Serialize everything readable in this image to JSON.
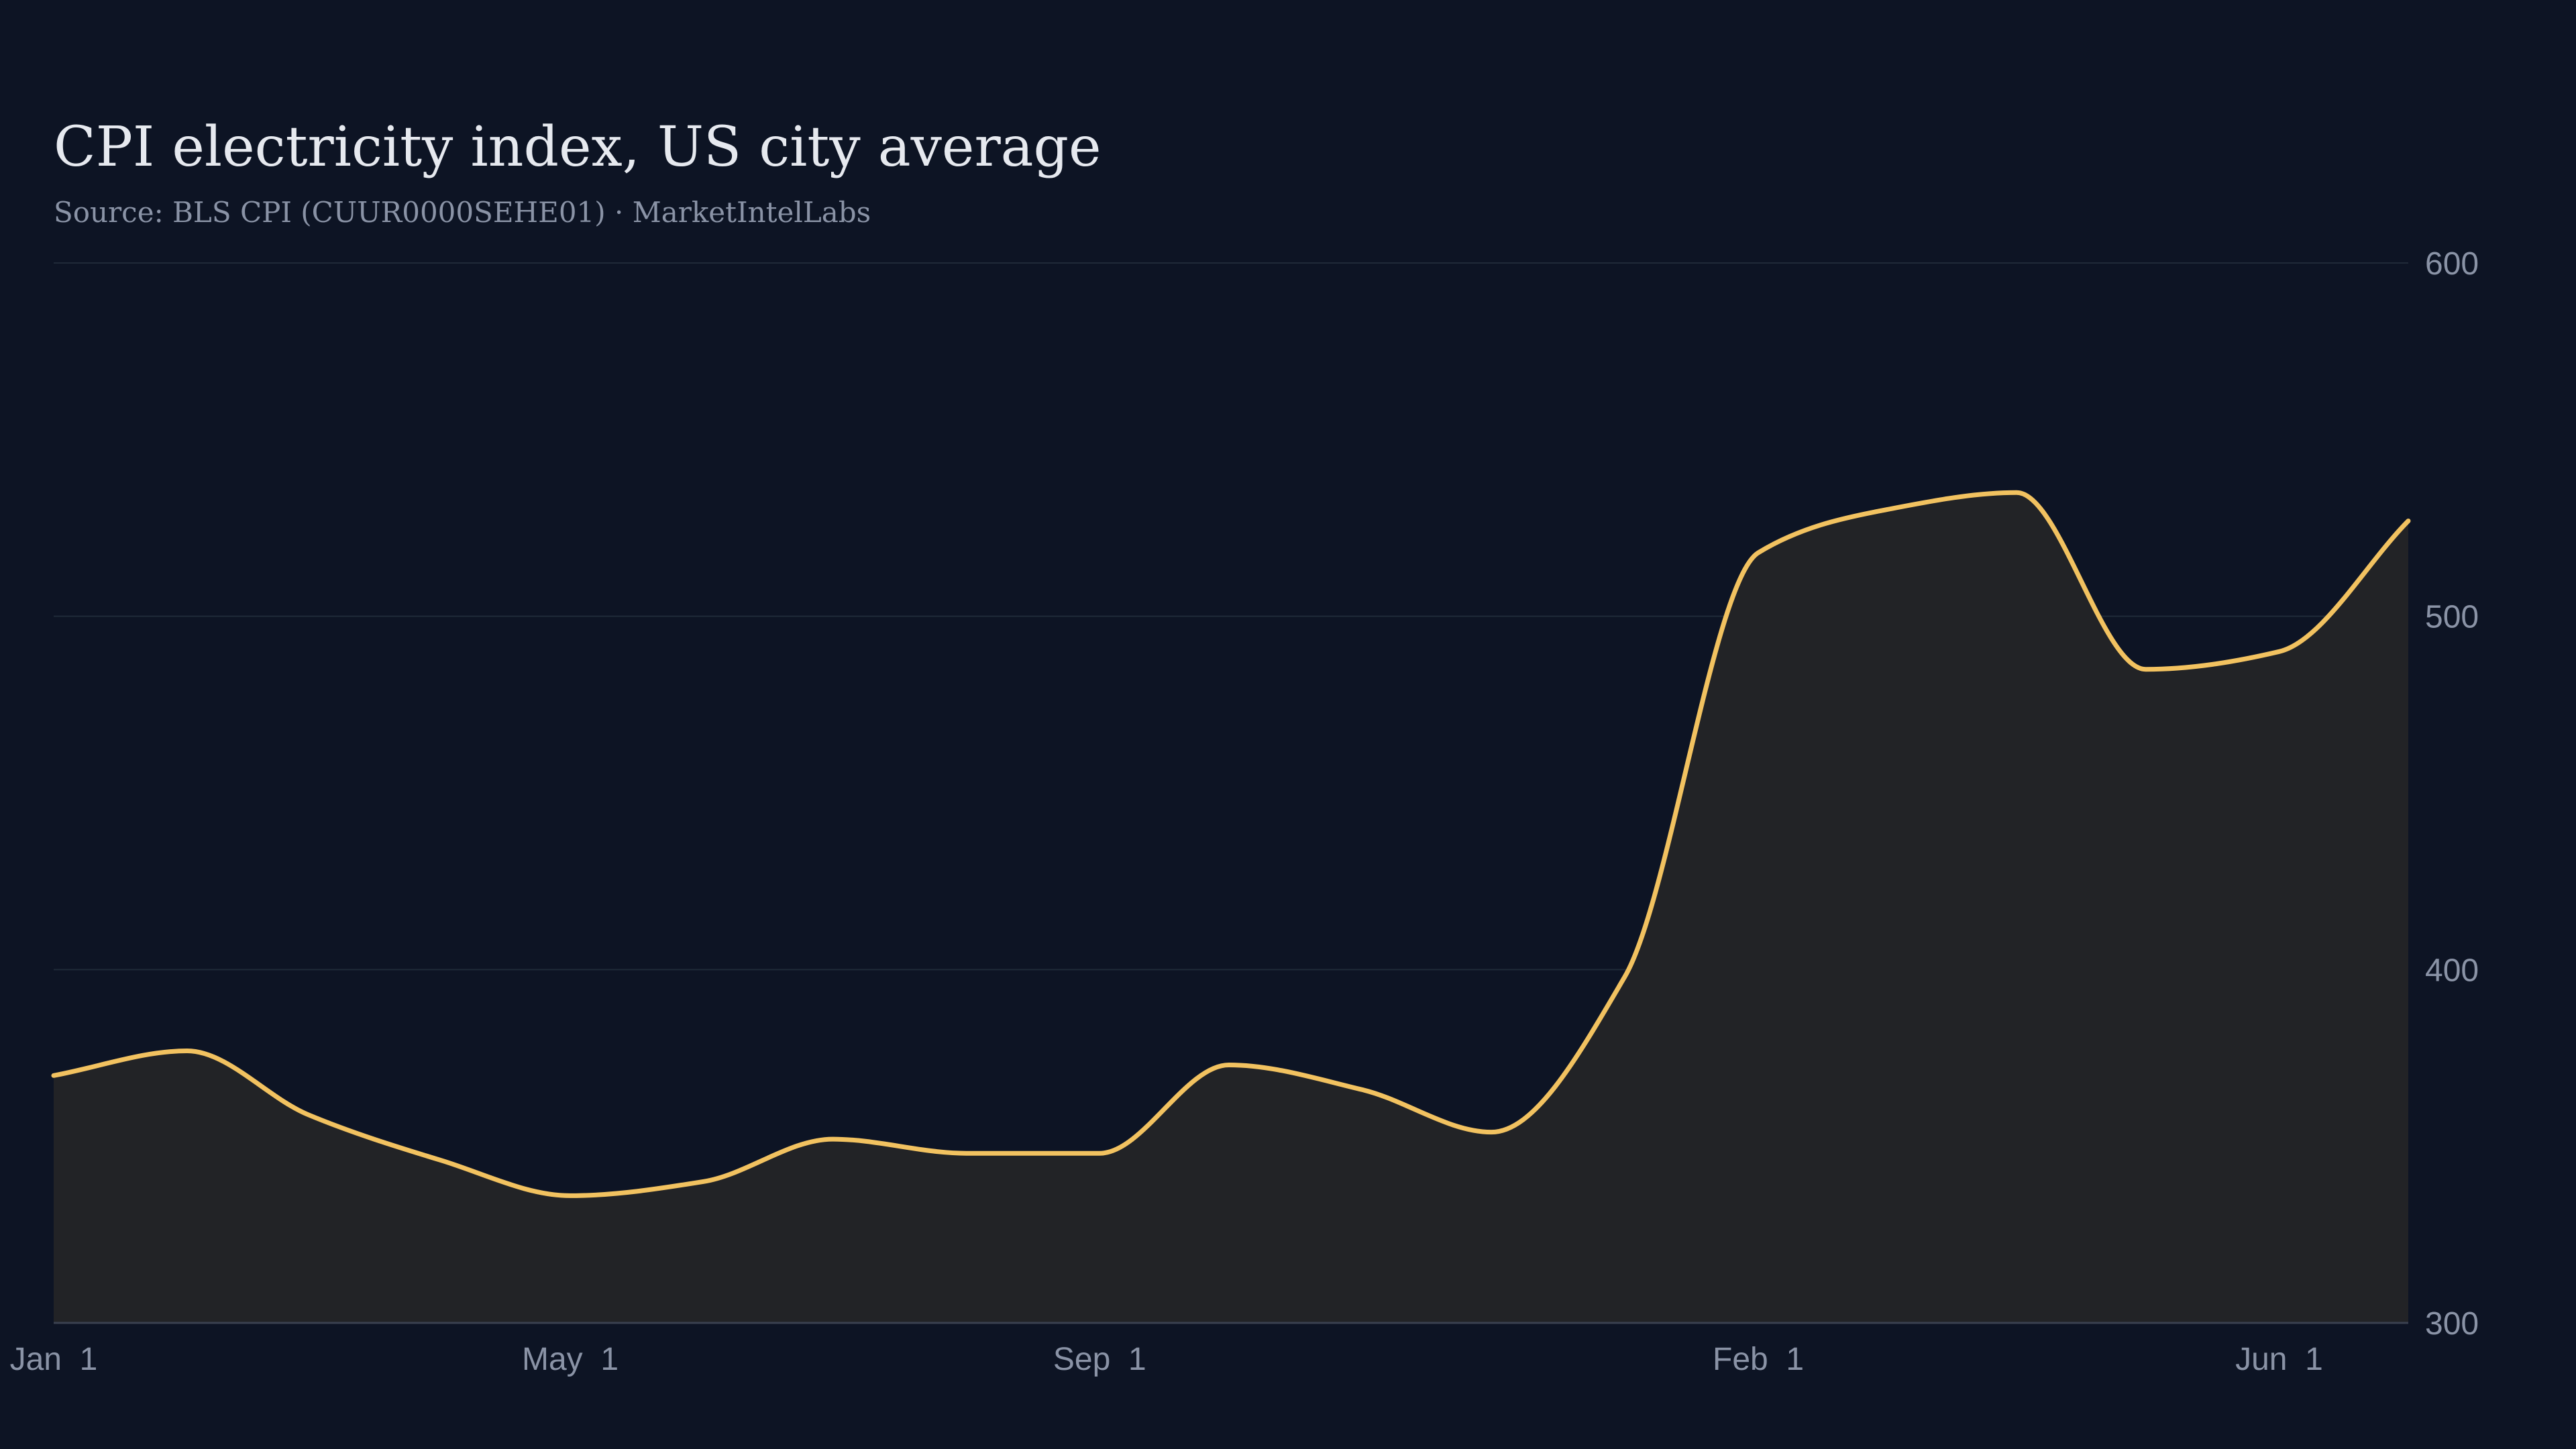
{
  "chart_data": {
    "type": "area",
    "title": "CPI electricity index, US city average",
    "subtitle": "Source: BLS CPI (CUUR0000SEHE01) · MarketIntelLabs",
    "xlabel": "",
    "ylabel": "",
    "ylim": [
      300,
      600
    ],
    "yticks": [
      "300",
      "400",
      "500",
      "600"
    ],
    "xticks": [
      {
        "label": "Jan  1",
        "date": "2023-01-01"
      },
      {
        "label": "May  1",
        "date": "2023-05-01"
      },
      {
        "label": "Sep  1",
        "date": "2023-09-01"
      },
      {
        "label": "Feb  1",
        "date": "2024-02-01"
      },
      {
        "label": "Jun  1",
        "date": "2024-06-01"
      }
    ],
    "grid": true,
    "y_axis_side": "right",
    "colors": {
      "background": "#0d1424",
      "line": "#f2c260",
      "fill": "#222326",
      "grid": "#1f2a38",
      "text": "#e6e9ef",
      "muted": "#8a93a6"
    },
    "series": [
      {
        "points": [
          {
            "x": "2023-01-01",
            "y": 370
          },
          {
            "x": "2023-02-01",
            "y": 377
          },
          {
            "x": "2023-03-01",
            "y": 359
          },
          {
            "x": "2023-04-01",
            "y": 346
          },
          {
            "x": "2023-05-01",
            "y": 336
          },
          {
            "x": "2023-06-01",
            "y": 340
          },
          {
            "x": "2023-07-01",
            "y": 352
          },
          {
            "x": "2023-08-01",
            "y": 348
          },
          {
            "x": "2023-09-01",
            "y": 348
          },
          {
            "x": "2023-10-01",
            "y": 373
          },
          {
            "x": "2023-11-01",
            "y": 366
          },
          {
            "x": "2023-12-01",
            "y": 354
          },
          {
            "x": "2024-01-01",
            "y": 398
          },
          {
            "x": "2024-02-01",
            "y": 518
          },
          {
            "x": "2024-03-01",
            "y": 530
          },
          {
            "x": "2024-04-01",
            "y": 535
          },
          {
            "x": "2024-05-01",
            "y": 485
          },
          {
            "x": "2024-06-01",
            "y": 490
          },
          {
            "x": "2024-07-01",
            "y": 527
          }
        ]
      }
    ]
  }
}
